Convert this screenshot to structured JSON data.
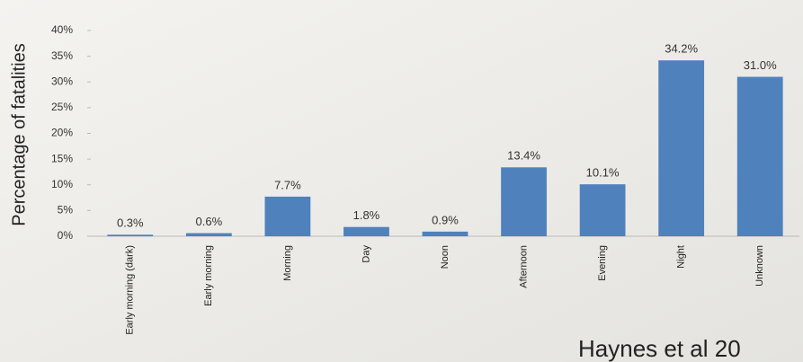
{
  "chart_data": {
    "type": "bar",
    "y_label": "Percentage of fatalities",
    "annotation": "Haynes et al 20",
    "categories": [
      "Early morning (dark)",
      "Early morning",
      "Morning",
      "Day",
      "Noon",
      "Afternoon",
      "Evening",
      "Night",
      "Unknown"
    ],
    "values": [
      0.3,
      0.6,
      7.7,
      1.8,
      0.9,
      13.4,
      10.1,
      34.2,
      31.0
    ],
    "value_labels": [
      "0.3%",
      "0.6%",
      "7.7%",
      "1.8%",
      "0.9%",
      "13.4%",
      "10.1%",
      "34.2%",
      "31.0%"
    ],
    "color": "#4f81bd",
    "ylim": [
      0,
      40
    ],
    "yticks": [
      {
        "value": 0,
        "label": "0%"
      },
      {
        "value": 5,
        "label": "5%"
      },
      {
        "value": 10,
        "label": "10%"
      },
      {
        "value": 15,
        "label": "15%"
      },
      {
        "value": 20,
        "label": "20%"
      },
      {
        "value": 25,
        "label": "25%"
      },
      {
        "value": 30,
        "label": "30%"
      },
      {
        "value": 35,
        "label": "35%"
      },
      {
        "value": 40,
        "label": "40%"
      }
    ],
    "grid": false
  }
}
